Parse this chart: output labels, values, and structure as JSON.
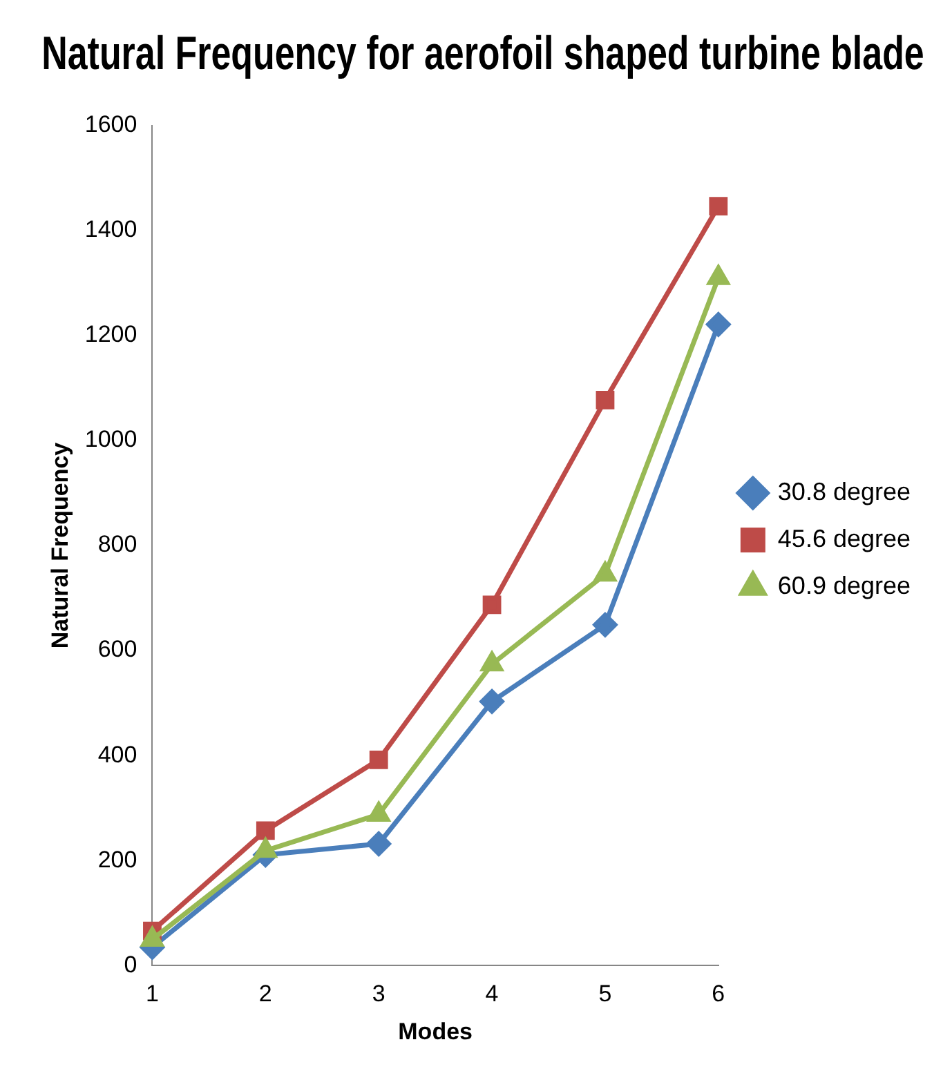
{
  "chart_data": {
    "type": "line",
    "title": "Natural Frequency for aerofoil shaped turbine blade",
    "xlabel": "Modes",
    "ylabel": "Natural Frequency",
    "categories": [
      "1",
      "2",
      "3",
      "4",
      "5",
      "6"
    ],
    "series": [
      {
        "name": "30.8 degree",
        "color": "#4a7ebb",
        "marker": "diamond",
        "values": [
          35,
          211,
          232,
          503,
          649,
          1221
        ]
      },
      {
        "name": "45.6 degree",
        "color": "#be4b48",
        "marker": "square",
        "values": [
          66,
          257,
          392,
          687,
          1077,
          1446
        ]
      },
      {
        "name": "60.9 degree",
        "color": "#98b954",
        "marker": "triangle",
        "values": [
          50,
          219,
          288,
          574,
          745,
          1310
        ]
      }
    ],
    "ylim": [
      0,
      1600
    ],
    "yticks": [
      0,
      200,
      400,
      600,
      800,
      1000,
      1200,
      1400,
      1600
    ],
    "grid": false,
    "legend": "right",
    "line_style": "solid"
  }
}
